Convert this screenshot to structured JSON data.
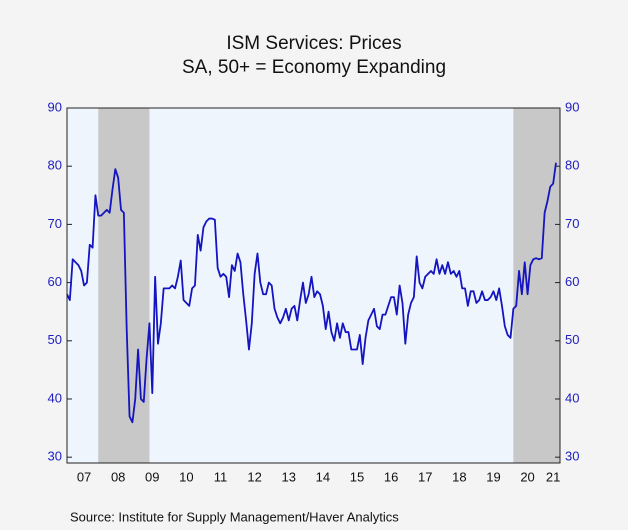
{
  "chart_data": {
    "type": "line",
    "title": "ISM Services: Prices",
    "subtitle": "SA, 50+ = Economy Expanding",
    "source": "Source:  Institute for Supply Management/Haver Analytics",
    "categories": [
      null,
      null,
      null,
      null,
      null,
      null,
      "07",
      null,
      null,
      null,
      null,
      null,
      null,
      null,
      null,
      null,
      null,
      null,
      "08",
      null,
      null,
      null,
      null,
      null,
      null,
      null,
      null,
      null,
      null,
      null,
      "09",
      null,
      null,
      null,
      null,
      null,
      null,
      null,
      null,
      null,
      null,
      null,
      "10",
      null,
      null,
      null,
      null,
      null,
      null,
      null,
      null,
      null,
      null,
      null,
      "11",
      null,
      null,
      null,
      null,
      null,
      null,
      null,
      null,
      null,
      null,
      null,
      "12",
      null,
      null,
      null,
      null,
      null,
      null,
      null,
      null,
      null,
      null,
      null,
      "13",
      null,
      null,
      null,
      null,
      null,
      null,
      null,
      null,
      null,
      null,
      null,
      "14",
      null,
      null,
      null,
      null,
      null,
      null,
      null,
      null,
      null,
      null,
      null,
      "15",
      null,
      null,
      null,
      null,
      null,
      null,
      null,
      null,
      null,
      null,
      null,
      "16",
      null,
      null,
      null,
      null,
      null,
      null,
      null,
      null,
      null,
      null,
      null,
      "17",
      null,
      null,
      null,
      null,
      null,
      null,
      null,
      null,
      null,
      null,
      null,
      "18",
      null,
      null,
      null,
      null,
      null,
      null,
      null,
      null,
      null,
      null,
      null,
      "19",
      null,
      null,
      null,
      null,
      null,
      null,
      null,
      null,
      null,
      null,
      null,
      "20",
      null,
      null,
      null,
      null,
      null,
      null,
      null,
      null,
      "21",
      null
    ],
    "series": [
      {
        "name": "ISM Services: Prices",
        "color": "#1414c0",
        "values": [
          58,
          57,
          64,
          63.5,
          63,
          62,
          59.5,
          60,
          66.5,
          66,
          75,
          71.5,
          71.5,
          72,
          72.5,
          72,
          76,
          79.5,
          78,
          72.5,
          72,
          52,
          37,
          36,
          40,
          48.5,
          40,
          39.5,
          47,
          53,
          41,
          61,
          49.5,
          53,
          59,
          59,
          59,
          59.5,
          59,
          61,
          63.8,
          57,
          56.5,
          56,
          59,
          59.5,
          68.2,
          65.5,
          69.5,
          70.5,
          71,
          71,
          70.8,
          62.5,
          61,
          61.5,
          61,
          57.5,
          63,
          62,
          65,
          63.5,
          58,
          53.5,
          48.5,
          53,
          61.5,
          65,
          60,
          58,
          58,
          60,
          59.5,
          55.5,
          54,
          53,
          54,
          55.5,
          53.5,
          55.5,
          56,
          53.5,
          57,
          60,
          56.5,
          58,
          61,
          57.5,
          58.5,
          58,
          56,
          52,
          55,
          51.5,
          50,
          53,
          50.5,
          53,
          51.5,
          51.5,
          48.5,
          48.5,
          48.5,
          51,
          46,
          50.5,
          53.5,
          54.5,
          55.5,
          52.5,
          52,
          54.5,
          54.5,
          56,
          57.5,
          57.5,
          54.5,
          59.5,
          56.5,
          49.5,
          54.5,
          56.5,
          57.5,
          64.5,
          60,
          59,
          61,
          61.5,
          62,
          61.5,
          64,
          61.5,
          63,
          61.5,
          63.5,
          61.5,
          62,
          61,
          62,
          59,
          59,
          56,
          58.5,
          58.5,
          56.5,
          57,
          58.5,
          57,
          57,
          57.5,
          58.5,
          57,
          59,
          56,
          52.5,
          51,
          50.5,
          55.5,
          56,
          62,
          58,
          63.5,
          58,
          63,
          64,
          64.2,
          64,
          64.2,
          72,
          74,
          76.5,
          77,
          80.6
        ]
      }
    ],
    "recessions": [
      [
        11,
        29
      ],
      [
        157,
        172
      ]
    ],
    "recession_color": "#c8c8c8",
    "plot_background": "#eef5fd",
    "ylim": [
      29,
      90
    ],
    "yticks": [
      30,
      40,
      50,
      60,
      70,
      80,
      90
    ],
    "y2lim": [
      29,
      90
    ],
    "y2ticks": [
      30,
      40,
      50,
      60,
      70,
      80,
      90
    ]
  }
}
